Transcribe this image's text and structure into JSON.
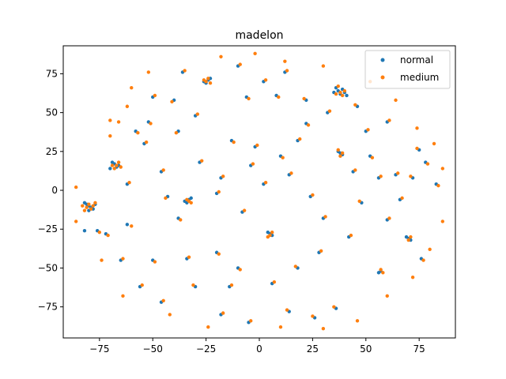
{
  "chart_data": {
    "type": "scatter",
    "title": "madelon",
    "xlabel": "",
    "ylabel": "",
    "xlim": [
      -92,
      92
    ],
    "ylim": [
      -95,
      93
    ],
    "x_ticks": [
      -75,
      -50,
      -25,
      0,
      25,
      50,
      75
    ],
    "y_ticks": [
      -75,
      -50,
      -25,
      0,
      25,
      50,
      75
    ],
    "x_tick_labels": [
      "−75",
      "−50",
      "−25",
      "0",
      "25",
      "50",
      "75"
    ],
    "y_tick_labels": [
      "−75",
      "−50",
      "−25",
      "0",
      "25",
      "50",
      "75"
    ],
    "grid": false,
    "legend_position": "top-right",
    "series": [
      {
        "name": "normal",
        "color": "#1f77b4",
        "points": [
          [
            -80,
            -10
          ],
          [
            -79,
            -11
          ],
          [
            -81,
            -9
          ],
          [
            -78,
            -12
          ],
          [
            -82,
            -8
          ],
          [
            -80,
            -13
          ],
          [
            -77,
            -9
          ],
          [
            -68,
            17
          ],
          [
            -67,
            15
          ],
          [
            -69,
            18
          ],
          [
            -66,
            16
          ],
          [
            -70,
            14
          ],
          [
            -24,
            71
          ],
          [
            -25,
            69
          ],
          [
            -23,
            72
          ],
          [
            -26,
            70
          ],
          [
            37,
            64
          ],
          [
            38,
            62
          ],
          [
            39,
            65
          ],
          [
            36,
            66
          ],
          [
            40,
            63
          ],
          [
            41,
            61
          ],
          [
            35,
            63
          ],
          [
            -33,
            -6
          ],
          [
            -34,
            -8
          ],
          [
            -32,
            -5
          ],
          [
            -35,
            -7
          ],
          [
            5,
            -28
          ],
          [
            6,
            -29
          ],
          [
            4,
            -27
          ],
          [
            38,
            24
          ],
          [
            39,
            23
          ],
          [
            37,
            25
          ],
          [
            70,
            -31
          ],
          [
            71,
            -32
          ],
          [
            69,
            -30
          ],
          [
            57,
            -52
          ],
          [
            56,
            -53
          ],
          [
            -62,
            -22
          ],
          [
            -58,
            38
          ],
          [
            -52,
            44
          ],
          [
            -38,
            38
          ],
          [
            -43,
            -4
          ],
          [
            -6,
            60
          ],
          [
            8,
            61
          ],
          [
            -13,
            32
          ],
          [
            -2,
            28
          ],
          [
            10,
            22
          ],
          [
            22,
            43
          ],
          [
            -30,
            -62
          ],
          [
            -18,
            -80
          ],
          [
            -5,
            -85
          ],
          [
            -76,
            -26
          ],
          [
            -82,
            -26
          ],
          [
            -65,
            -45
          ],
          [
            -50,
            -45
          ],
          [
            -46,
            -72
          ],
          [
            -38,
            -18
          ],
          [
            -20,
            -40
          ],
          [
            -10,
            -50
          ],
          [
            18,
            -50
          ],
          [
            26,
            -82
          ],
          [
            14,
            -78
          ],
          [
            36,
            -76
          ],
          [
            42,
            -30
          ],
          [
            48,
            -8
          ],
          [
            60,
            -19
          ],
          [
            64,
            10
          ],
          [
            66,
            -6
          ],
          [
            72,
            8
          ],
          [
            75,
            26
          ],
          [
            78,
            18
          ],
          [
            83,
            4
          ],
          [
            76,
            -44
          ],
          [
            50,
            38
          ],
          [
            46,
            54
          ],
          [
            60,
            44
          ],
          [
            12,
            76
          ],
          [
            -10,
            80
          ],
          [
            -40,
            58
          ],
          [
            -28,
            18
          ],
          [
            -18,
            8
          ],
          [
            -8,
            -14
          ],
          [
            2,
            4
          ],
          [
            14,
            10
          ],
          [
            24,
            -4
          ],
          [
            30,
            -18
          ],
          [
            44,
            12
          ],
          [
            52,
            22
          ],
          [
            56,
            8
          ],
          [
            -54,
            30
          ],
          [
            -62,
            4
          ],
          [
            -72,
            -28
          ],
          [
            -56,
            -62
          ],
          [
            -34,
            -44
          ],
          [
            -14,
            -62
          ],
          [
            6,
            -60
          ],
          [
            28,
            -40
          ],
          [
            -46,
            12
          ],
          [
            -20,
            -2
          ],
          [
            -4,
            16
          ],
          [
            18,
            32
          ],
          [
            32,
            50
          ],
          [
            -30,
            48
          ],
          [
            -50,
            60
          ],
          [
            -36,
            76
          ],
          [
            2,
            70
          ],
          [
            22,
            58
          ]
        ]
      },
      {
        "name": "medium",
        "color": "#ff7f0e",
        "points": [
          [
            -80,
            -9
          ],
          [
            -79,
            -12
          ],
          [
            -81,
            -11
          ],
          [
            -78,
            -10
          ],
          [
            -82,
            -13
          ],
          [
            -77,
            -8
          ],
          [
            -83,
            -10
          ],
          [
            -67,
            16
          ],
          [
            -68,
            14
          ],
          [
            -66,
            18
          ],
          [
            -69,
            16
          ],
          [
            -65,
            15
          ],
          [
            -25,
            70
          ],
          [
            -24,
            72
          ],
          [
            -26,
            71
          ],
          [
            -23,
            69
          ],
          [
            38,
            63
          ],
          [
            36,
            62
          ],
          [
            40,
            64
          ],
          [
            37,
            67
          ],
          [
            39,
            61
          ],
          [
            -33,
            -7
          ],
          [
            -34,
            -6
          ],
          [
            -32,
            -8
          ],
          [
            5,
            -29
          ],
          [
            4,
            -30
          ],
          [
            6,
            -27
          ],
          [
            38,
            22
          ],
          [
            37,
            26
          ],
          [
            39,
            24
          ],
          [
            70,
            -32
          ],
          [
            71,
            -30
          ],
          [
            57,
            -51
          ],
          [
            58,
            -53
          ],
          [
            -60,
            -23
          ],
          [
            -57,
            37
          ],
          [
            -51,
            43
          ],
          [
            -39,
            37
          ],
          [
            -44,
            -5
          ],
          [
            -5,
            59
          ],
          [
            9,
            60
          ],
          [
            -12,
            31
          ],
          [
            -1,
            29
          ],
          [
            11,
            21
          ],
          [
            23,
            42
          ],
          [
            -31,
            -61
          ],
          [
            -17,
            -79
          ],
          [
            -4,
            -84
          ],
          [
            -75,
            -27
          ],
          [
            -64,
            -44
          ],
          [
            -49,
            -46
          ],
          [
            -45,
            -71
          ],
          [
            -37,
            -19
          ],
          [
            -19,
            -41
          ],
          [
            -9,
            -51
          ],
          [
            17,
            -49
          ],
          [
            25,
            -81
          ],
          [
            13,
            -77
          ],
          [
            35,
            -75
          ],
          [
            43,
            -29
          ],
          [
            47,
            -7
          ],
          [
            61,
            -18
          ],
          [
            65,
            11
          ],
          [
            67,
            -5
          ],
          [
            71,
            9
          ],
          [
            74,
            27
          ],
          [
            79,
            17
          ],
          [
            84,
            3
          ],
          [
            77,
            -45
          ],
          [
            51,
            39
          ],
          [
            45,
            55
          ],
          [
            61,
            45
          ],
          [
            13,
            77
          ],
          [
            -9,
            81
          ],
          [
            -41,
            57
          ],
          [
            -27,
            19
          ],
          [
            -17,
            9
          ],
          [
            -7,
            -13
          ],
          [
            3,
            5
          ],
          [
            15,
            11
          ],
          [
            25,
            -3
          ],
          [
            31,
            -17
          ],
          [
            45,
            13
          ],
          [
            53,
            21
          ],
          [
            57,
            9
          ],
          [
            -53,
            31
          ],
          [
            -61,
            5
          ],
          [
            -71,
            -29
          ],
          [
            -55,
            -61
          ],
          [
            -33,
            -43
          ],
          [
            -13,
            -61
          ],
          [
            7,
            -59
          ],
          [
            29,
            -39
          ],
          [
            -45,
            13
          ],
          [
            -19,
            -1
          ],
          [
            -3,
            17
          ],
          [
            19,
            33
          ],
          [
            33,
            51
          ],
          [
            -29,
            49
          ],
          [
            -49,
            61
          ],
          [
            -35,
            77
          ],
          [
            3,
            71
          ],
          [
            21,
            59
          ],
          [
            12,
            83
          ],
          [
            -66,
            44
          ],
          [
            -70,
            35
          ],
          [
            -70,
            45
          ],
          [
            -62,
            54
          ],
          [
            -74,
            -45
          ],
          [
            -64,
            -68
          ],
          [
            -42,
            -80
          ],
          [
            -24,
            -88
          ],
          [
            10,
            -88
          ],
          [
            30,
            -89
          ],
          [
            46,
            -84
          ],
          [
            60,
            -68
          ],
          [
            72,
            -56
          ],
          [
            80,
            -38
          ],
          [
            86,
            -20
          ],
          [
            86,
            14
          ],
          [
            82,
            30
          ],
          [
            74,
            40
          ],
          [
            64,
            58
          ],
          [
            52,
            70
          ],
          [
            30,
            80
          ],
          [
            -2,
            88
          ],
          [
            -18,
            86
          ],
          [
            -52,
            76
          ],
          [
            -60,
            66
          ],
          [
            -86,
            2
          ],
          [
            -86,
            -20
          ]
        ]
      }
    ]
  }
}
